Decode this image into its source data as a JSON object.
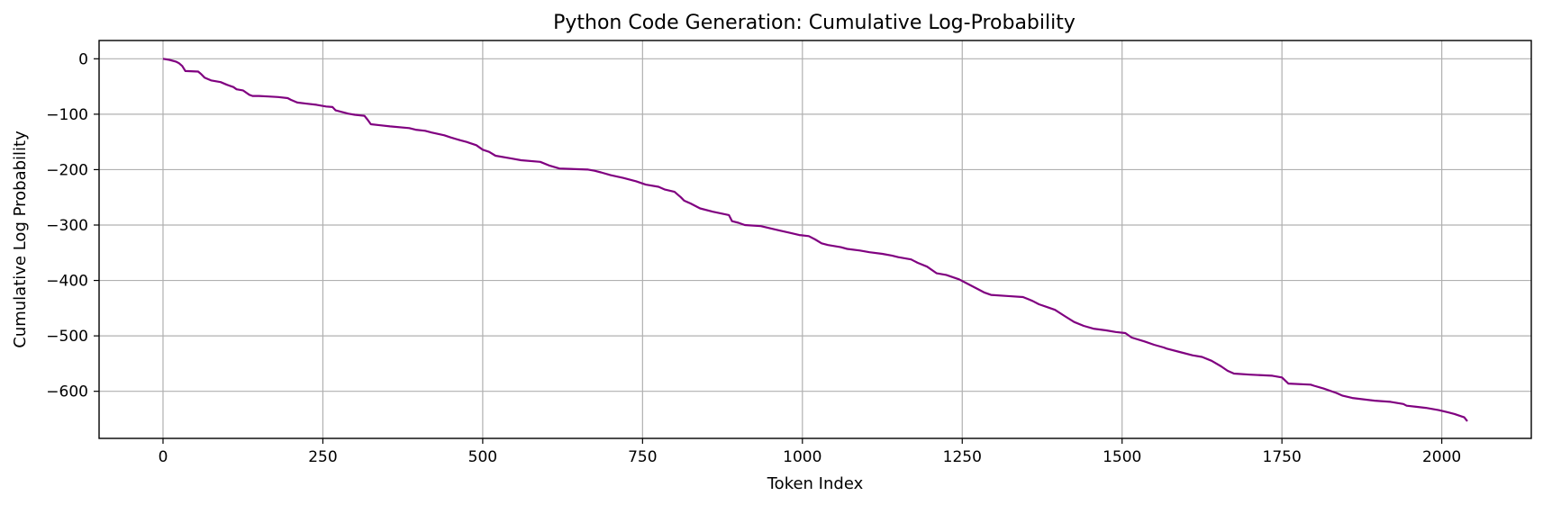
{
  "chart_data": {
    "type": "line",
    "title": "Python Code Generation: Cumulative Log-Probability",
    "xlabel": "Token Index",
    "ylabel": "Cumulative Log Probability",
    "xlim": [
      -100,
      2140
    ],
    "ylim": [
      -685,
      33
    ],
    "xticks": [
      0,
      250,
      500,
      750,
      1000,
      1250,
      1500,
      1750,
      2000
    ],
    "yticks": [
      0,
      -100,
      -200,
      -300,
      -400,
      -500,
      -600
    ],
    "grid": true,
    "line_color": "#800080",
    "series": [
      {
        "name": "",
        "x": [
          0,
          10,
          20,
          25,
          30,
          35,
          55,
          60,
          65,
          75,
          90,
          100,
          110,
          115,
          125,
          135,
          140,
          150,
          165,
          180,
          195,
          200,
          210,
          225,
          240,
          255,
          265,
          270,
          280,
          290,
          300,
          315,
          320,
          325,
          340,
          355,
          385,
          395,
          410,
          420,
          440,
          450,
          465,
          475,
          480,
          490,
          500,
          510,
          520,
          545,
          560,
          590,
          605,
          620,
          665,
          675,
          685,
          700,
          720,
          740,
          755,
          775,
          785,
          800,
          810,
          815,
          825,
          840,
          860,
          885,
          890,
          900,
          910,
          935,
          950,
          965,
          980,
          995,
          1010,
          1020,
          1030,
          1040,
          1060,
          1070,
          1090,
          1105,
          1125,
          1140,
          1150,
          1170,
          1180,
          1195,
          1210,
          1225,
          1245,
          1255,
          1275,
          1285,
          1295,
          1320,
          1345,
          1360,
          1370,
          1385,
          1395,
          1410,
          1425,
          1440,
          1455,
          1475,
          1490,
          1505,
          1515,
          1535,
          1550,
          1565,
          1570,
          1590,
          1610,
          1625,
          1640,
          1655,
          1665,
          1675,
          1700,
          1735,
          1750,
          1760,
          1795,
          1800,
          1815,
          1835,
          1845,
          1860,
          1895,
          1920,
          1940,
          1945,
          1960,
          1975,
          1995,
          2010,
          2020,
          2035,
          2040
        ],
        "values": [
          0,
          -2,
          -5,
          -8,
          -13,
          -22,
          -23,
          -28,
          -34,
          -39,
          -42,
          -47,
          -51,
          -55,
          -57,
          -65,
          -67,
          -67,
          -68,
          -69,
          -71,
          -74,
          -79,
          -81,
          -83,
          -86,
          -87,
          -93,
          -96,
          -99,
          -101,
          -103,
          -110,
          -118,
          -120,
          -122,
          -125,
          -128,
          -130,
          -133,
          -138,
          -142,
          -147,
          -150,
          -152,
          -156,
          -164,
          -168,
          -175,
          -180,
          -183,
          -186,
          -193,
          -198,
          -200,
          -202,
          -205,
          -210,
          -215,
          -221,
          -227,
          -231,
          -236,
          -240,
          -250,
          -256,
          -261,
          -270,
          -276,
          -282,
          -293,
          -296,
          -300,
          -302,
          -306,
          -310,
          -314,
          -318,
          -320,
          -326,
          -333,
          -336,
          -340,
          -343,
          -346,
          -349,
          -352,
          -355,
          -358,
          -362,
          -368,
          -375,
          -387,
          -390,
          -398,
          -404,
          -416,
          -422,
          -426,
          -428,
          -430,
          -437,
          -443,
          -449,
          -453,
          -464,
          -475,
          -482,
          -487,
          -490,
          -493,
          -495,
          -503,
          -510,
          -516,
          -521,
          -523,
          -529,
          -535,
          -538,
          -545,
          -555,
          -563,
          -568,
          -570,
          -572,
          -575,
          -586,
          -588,
          -590,
          -595,
          -603,
          -608,
          -612,
          -617,
          -619,
          -623,
          -626,
          -628,
          -630,
          -634,
          -638,
          -641,
          -647,
          -654
        ]
      }
    ]
  }
}
